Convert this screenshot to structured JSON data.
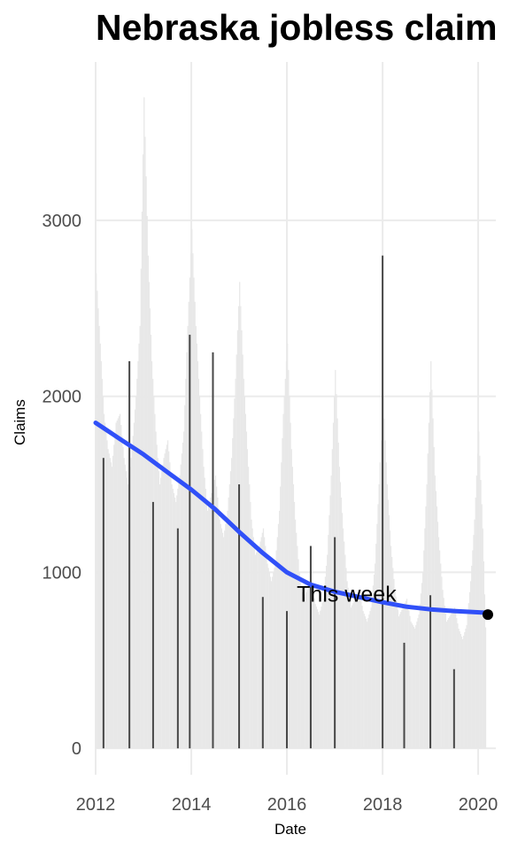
{
  "chart_data": {
    "type": "bar",
    "title": "Nebraska jobless claim",
    "xlabel": "Date",
    "ylabel": "Claims",
    "xlim": [
      "2012-01-01",
      "2020-05-15"
    ],
    "ylim": [
      -150,
      3900
    ],
    "x_ticks": [
      {
        "value": "2012-01-01",
        "label": "2012"
      },
      {
        "value": "2014-01-01",
        "label": "2014"
      },
      {
        "value": "2016-01-01",
        "label": "2016"
      },
      {
        "value": "2018-01-01",
        "label": "2018"
      },
      {
        "value": "2020-01-01",
        "label": "2020"
      }
    ],
    "y_ticks": [
      {
        "value": 0,
        "label": "0"
      },
      {
        "value": 1000,
        "label": "1000"
      },
      {
        "value": 2000,
        "label": "2000"
      },
      {
        "value": 3000,
        "label": "3000"
      }
    ],
    "grid": true,
    "background_bars": {
      "color": "#e8e8e8",
      "points": [
        [
          "2012-01-01",
          2700
        ],
        [
          "2012-02-01",
          2300
        ],
        [
          "2012-03-01",
          1900
        ],
        [
          "2012-04-01",
          1700
        ],
        [
          "2012-05-01",
          1600
        ],
        [
          "2012-06-01",
          1850
        ],
        [
          "2012-07-01",
          1900
        ],
        [
          "2012-08-01",
          1650
        ],
        [
          "2012-09-01",
          1500
        ],
        [
          "2012-10-01",
          1700
        ],
        [
          "2012-11-01",
          2000
        ],
        [
          "2012-12-01",
          2400
        ],
        [
          "2013-01-01",
          3700
        ],
        [
          "2013-02-01",
          2800
        ],
        [
          "2013-03-01",
          2200
        ],
        [
          "2013-04-01",
          1800
        ],
        [
          "2013-05-01",
          1500
        ],
        [
          "2013-06-01",
          1650
        ],
        [
          "2013-07-01",
          1750
        ],
        [
          "2013-08-01",
          1500
        ],
        [
          "2013-09-01",
          1400
        ],
        [
          "2013-10-01",
          1550
        ],
        [
          "2013-11-01",
          1800
        ],
        [
          "2013-12-01",
          2400
        ],
        [
          "2014-01-01",
          2950
        ],
        [
          "2014-02-01",
          2400
        ],
        [
          "2014-03-01",
          2000
        ],
        [
          "2014-04-01",
          1600
        ],
        [
          "2014-05-01",
          1350
        ],
        [
          "2014-06-01",
          1450
        ],
        [
          "2014-07-01",
          1550
        ],
        [
          "2014-08-01",
          1300
        ],
        [
          "2014-09-01",
          1200
        ],
        [
          "2014-10-01",
          1350
        ],
        [
          "2014-11-01",
          1650
        ],
        [
          "2014-12-01",
          2100
        ],
        [
          "2015-01-01",
          2650
        ],
        [
          "2015-02-01",
          2100
        ],
        [
          "2015-03-01",
          1700
        ],
        [
          "2015-04-01",
          1300
        ],
        [
          "2015-05-01",
          1100
        ],
        [
          "2015-06-01",
          1150
        ],
        [
          "2015-07-01",
          1250
        ],
        [
          "2015-08-01",
          1050
        ],
        [
          "2015-09-01",
          950
        ],
        [
          "2015-10-01",
          1050
        ],
        [
          "2015-11-01",
          1350
        ],
        [
          "2015-12-01",
          1900
        ],
        [
          "2016-01-01",
          2300
        ],
        [
          "2016-02-01",
          1700
        ],
        [
          "2016-03-01",
          1300
        ],
        [
          "2016-04-01",
          1000
        ],
        [
          "2016-05-01",
          850
        ],
        [
          "2016-06-01",
          900
        ],
        [
          "2016-07-01",
          950
        ],
        [
          "2016-08-01",
          820
        ],
        [
          "2016-09-01",
          760
        ],
        [
          "2016-10-01",
          850
        ],
        [
          "2016-11-01",
          1100
        ],
        [
          "2016-12-01",
          1550
        ],
        [
          "2017-01-01",
          2150
        ],
        [
          "2017-02-01",
          1600
        ],
        [
          "2017-03-01",
          1250
        ],
        [
          "2017-04-01",
          950
        ],
        [
          "2017-05-01",
          800
        ],
        [
          "2017-06-01",
          850
        ],
        [
          "2017-07-01",
          900
        ],
        [
          "2017-08-01",
          780
        ],
        [
          "2017-09-01",
          720
        ],
        [
          "2017-10-01",
          800
        ],
        [
          "2017-11-01",
          1050
        ],
        [
          "2017-12-01",
          1500
        ],
        [
          "2018-01-01",
          2000
        ],
        [
          "2018-02-01",
          1500
        ],
        [
          "2018-03-01",
          1150
        ],
        [
          "2018-04-01",
          900
        ],
        [
          "2018-05-01",
          750
        ],
        [
          "2018-06-01",
          800
        ],
        [
          "2018-07-01",
          850
        ],
        [
          "2018-08-01",
          720
        ],
        [
          "2018-09-01",
          680
        ],
        [
          "2018-10-01",
          760
        ],
        [
          "2018-11-01",
          1000
        ],
        [
          "2018-12-01",
          1500
        ],
        [
          "2019-01-01",
          2200
        ],
        [
          "2019-02-01",
          1550
        ],
        [
          "2019-03-01",
          1200
        ],
        [
          "2019-04-01",
          900
        ],
        [
          "2019-05-01",
          720
        ],
        [
          "2019-06-01",
          760
        ],
        [
          "2019-07-01",
          800
        ],
        [
          "2019-08-01",
          680
        ],
        [
          "2019-09-01",
          620
        ],
        [
          "2019-10-01",
          700
        ],
        [
          "2019-11-01",
          950
        ],
        [
          "2019-12-01",
          1300
        ],
        [
          "2020-01-01",
          1800
        ],
        [
          "2020-02-01",
          1250
        ],
        [
          "2020-03-01",
          500
        ]
      ]
    },
    "series": [
      {
        "type": "bar",
        "color": "#474747",
        "points": [
          [
            "2012-03-01",
            1650
          ],
          [
            "2012-09-15",
            2200
          ],
          [
            "2013-03-15",
            1400
          ],
          [
            "2013-09-20",
            1250
          ],
          [
            "2013-12-20",
            2350
          ],
          [
            "2014-06-15",
            2250
          ],
          [
            "2015-01-01",
            1500
          ],
          [
            "2015-07-01",
            860
          ],
          [
            "2016-01-01",
            780
          ],
          [
            "2016-07-01",
            1150
          ],
          [
            "2017-01-01",
            1200
          ],
          [
            "2018-01-01",
            2800
          ],
          [
            "2018-06-15",
            600
          ],
          [
            "2019-01-01",
            870
          ],
          [
            "2019-07-01",
            450
          ]
        ]
      },
      {
        "type": "line",
        "color": "#3050f8",
        "points": [
          [
            "2012-01-01",
            1850
          ],
          [
            "2012-07-01",
            1760
          ],
          [
            "2013-01-01",
            1670
          ],
          [
            "2013-07-01",
            1570
          ],
          [
            "2014-01-01",
            1470
          ],
          [
            "2014-07-01",
            1360
          ],
          [
            "2015-01-01",
            1230
          ],
          [
            "2015-07-01",
            1110
          ],
          [
            "2016-01-01",
            1000
          ],
          [
            "2016-07-01",
            930
          ],
          [
            "2017-01-01",
            890
          ],
          [
            "2017-07-01",
            860
          ],
          [
            "2018-01-01",
            830
          ],
          [
            "2018-07-01",
            805
          ],
          [
            "2019-01-01",
            790
          ],
          [
            "2019-07-01",
            780
          ],
          [
            "2020-03-15",
            770
          ]
        ]
      }
    ],
    "highlight_point": {
      "x": "2020-03-15",
      "y": 760,
      "color": "#000000"
    },
    "annotation": {
      "text": "This week",
      "x": "2017-04-01",
      "y": 870
    }
  }
}
